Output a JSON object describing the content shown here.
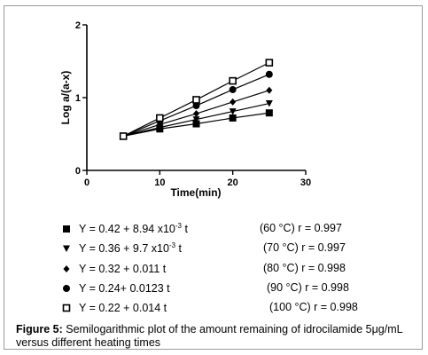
{
  "chart_data": {
    "type": "line",
    "xlabel": "Time(min)",
    "ylabel": "Log a/(a-x)",
    "xlim": [
      0,
      30
    ],
    "ylim": [
      0,
      2
    ],
    "x_ticks": [
      "0",
      "10",
      "20",
      "30"
    ],
    "y_ticks": [
      "0",
      "1",
      "2"
    ],
    "grid": false,
    "x": [
      5,
      10,
      15,
      20,
      25
    ],
    "series": [
      {
        "name": "60 °C",
        "marker": "square-filled",
        "values": [
          0.47,
          0.57,
          0.64,
          0.72,
          0.79
        ],
        "equation_main": "Y = 0.42 + 8.94 x10",
        "equation_exp": "-3",
        "equation_tail": " t",
        "condition": "(60 °C)  r = 0.997"
      },
      {
        "name": "70 °C",
        "marker": "triangle-down",
        "values": [
          0.47,
          0.59,
          0.7,
          0.81,
          0.92
        ],
        "equation_main": "Y = 0.36 + 9.7 x10",
        "equation_exp": "-3",
        "equation_tail": " t",
        "condition": "(70 °C)  r = 0.997"
      },
      {
        "name": "80 °C",
        "marker": "diamond",
        "values": [
          0.47,
          0.63,
          0.78,
          0.94,
          1.1
        ],
        "equation_main": "Y = 0.32 + 0.011 t",
        "equation_exp": "",
        "equation_tail": "",
        "condition": "(80 °C)  r = 0.998"
      },
      {
        "name": "90 °C",
        "marker": "circle-filled",
        "values": [
          0.47,
          0.68,
          0.89,
          1.11,
          1.32
        ],
        "equation_main": "Y = 0.24+ 0.0123 t",
        "equation_exp": "",
        "equation_tail": "",
        "condition": "(90 °C)   r = 0.998"
      },
      {
        "name": "100 °C",
        "marker": "square-open",
        "values": [
          0.47,
          0.72,
          0.97,
          1.23,
          1.48
        ],
        "equation_main": "Y = 0.22 + 0.014 t",
        "equation_exp": "",
        "equation_tail": "",
        "condition": "(100 °C) r = 0.998"
      }
    ]
  },
  "caption": {
    "label": "Figure 5:",
    "text": " Semilogarithmic plot of the amount remaining of idrocilamide 5μg/mL versus different heating times"
  }
}
